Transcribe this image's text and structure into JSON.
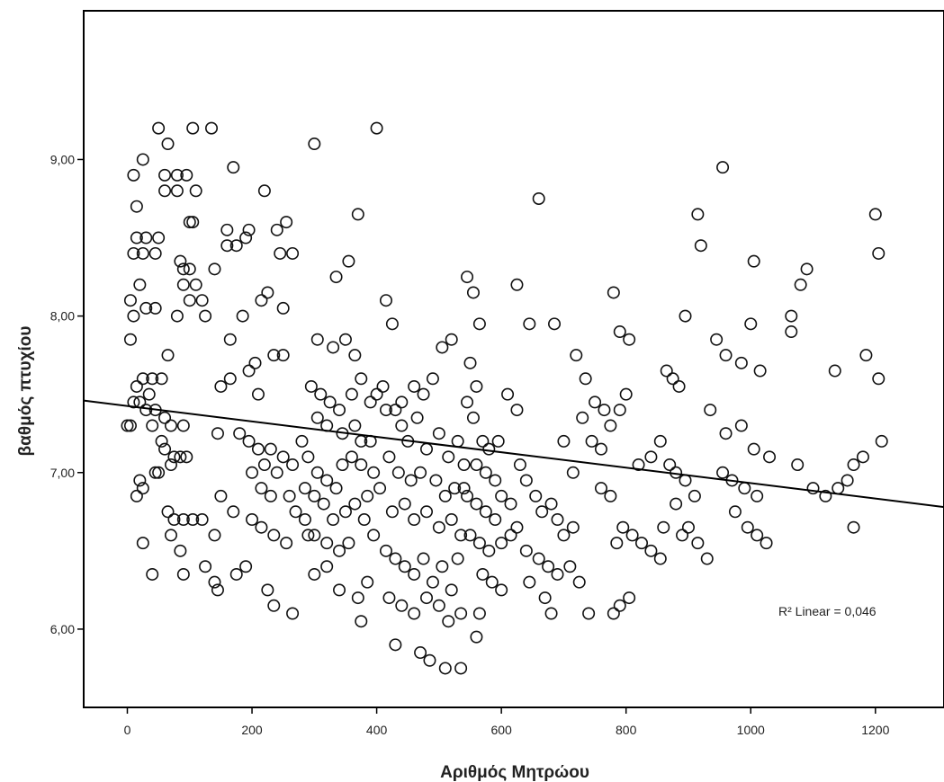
{
  "chart_data": {
    "type": "scatter",
    "title": "",
    "xlabel": "Αριθμός Μητρώου",
    "ylabel": "βαθμός πτυχίου",
    "xlim": [
      -70,
      1310
    ],
    "ylim": [
      5.5,
      9.95
    ],
    "x_ticks": [
      0,
      200,
      400,
      600,
      800,
      1000,
      1200
    ],
    "x_tick_labels": [
      "0",
      "200",
      "400",
      "600",
      "800",
      "1000",
      "1200"
    ],
    "y_ticks": [
      6,
      7,
      8,
      9
    ],
    "y_tick_labels": [
      "6,00",
      "7,00",
      "8,00",
      "9,00"
    ],
    "grid": false,
    "fit_line": {
      "type": "linear",
      "x": [
        -70,
        1310
      ],
      "y": [
        7.46,
        6.78
      ]
    },
    "annotation": "R² Linear = 0,046",
    "points": [
      [
        50,
        9.2
      ],
      [
        105,
        9.2
      ],
      [
        135,
        9.2
      ],
      [
        65,
        9.1
      ],
      [
        25,
        9.0
      ],
      [
        80,
        8.9
      ],
      [
        95,
        8.9
      ],
      [
        60,
        8.9
      ],
      [
        10,
        8.9
      ],
      [
        60,
        8.8
      ],
      [
        80,
        8.8
      ],
      [
        110,
        8.8
      ],
      [
        15,
        8.7
      ],
      [
        100,
        8.6
      ],
      [
        105,
        8.6
      ],
      [
        50,
        8.5
      ],
      [
        30,
        8.5
      ],
      [
        15,
        8.5
      ],
      [
        10,
        8.4
      ],
      [
        25,
        8.4
      ],
      [
        45,
        8.4
      ],
      [
        85,
        8.35
      ],
      [
        90,
        8.3
      ],
      [
        100,
        8.3
      ],
      [
        140,
        8.3
      ],
      [
        110,
        8.2
      ],
      [
        90,
        8.2
      ],
      [
        20,
        8.2
      ],
      [
        5,
        8.1
      ],
      [
        120,
        8.1
      ],
      [
        45,
        8.05
      ],
      [
        30,
        8.05
      ],
      [
        10,
        8.0
      ],
      [
        80,
        8.0
      ],
      [
        125,
        8.0
      ],
      [
        100,
        8.1
      ],
      [
        5,
        7.85
      ],
      [
        65,
        7.75
      ],
      [
        15,
        7.55
      ],
      [
        25,
        7.6
      ],
      [
        40,
        7.6
      ],
      [
        55,
        7.6
      ],
      [
        35,
        7.5
      ],
      [
        10,
        7.45
      ],
      [
        20,
        7.45
      ],
      [
        45,
        7.4
      ],
      [
        30,
        7.4
      ],
      [
        60,
        7.35
      ],
      [
        0,
        7.3
      ],
      [
        5,
        7.3
      ],
      [
        40,
        7.3
      ],
      [
        70,
        7.3
      ],
      [
        90,
        7.3
      ],
      [
        55,
        7.2
      ],
      [
        60,
        7.15
      ],
      [
        75,
        7.1
      ],
      [
        85,
        7.1
      ],
      [
        95,
        7.1
      ],
      [
        70,
        7.05
      ],
      [
        45,
        7.0
      ],
      [
        20,
        6.95
      ],
      [
        50,
        7.0
      ],
      [
        15,
        6.85
      ],
      [
        25,
        6.9
      ],
      [
        65,
        6.75
      ],
      [
        75,
        6.7
      ],
      [
        90,
        6.7
      ],
      [
        70,
        6.6
      ],
      [
        105,
        6.7
      ],
      [
        120,
        6.7
      ],
      [
        85,
        6.5
      ],
      [
        25,
        6.55
      ],
      [
        140,
        6.6
      ],
      [
        40,
        6.35
      ],
      [
        90,
        6.35
      ],
      [
        125,
        6.4
      ],
      [
        140,
        6.3
      ],
      [
        145,
        6.25
      ],
      [
        175,
        6.35
      ],
      [
        190,
        6.4
      ],
      [
        170,
        8.95
      ],
      [
        220,
        8.8
      ],
      [
        195,
        8.55
      ],
      [
        160,
        8.55
      ],
      [
        190,
        8.5
      ],
      [
        175,
        8.45
      ],
      [
        160,
        8.45
      ],
      [
        240,
        8.55
      ],
      [
        255,
        8.6
      ],
      [
        245,
        8.4
      ],
      [
        265,
        8.4
      ],
      [
        225,
        8.15
      ],
      [
        215,
        8.1
      ],
      [
        250,
        8.05
      ],
      [
        185,
        8.0
      ],
      [
        165,
        7.85
      ],
      [
        205,
        7.7
      ],
      [
        210,
        7.5
      ],
      [
        195,
        7.65
      ],
      [
        235,
        7.75
      ],
      [
        250,
        7.75
      ],
      [
        165,
        7.6
      ],
      [
        150,
        7.55
      ],
      [
        145,
        7.25
      ],
      [
        180,
        7.25
      ],
      [
        195,
        7.2
      ],
      [
        210,
        7.15
      ],
      [
        220,
        7.05
      ],
      [
        200,
        7.0
      ],
      [
        230,
        7.15
      ],
      [
        240,
        7.0
      ],
      [
        250,
        7.1
      ],
      [
        265,
        7.05
      ],
      [
        215,
        6.9
      ],
      [
        230,
        6.85
      ],
      [
        260,
        6.85
      ],
      [
        150,
        6.85
      ],
      [
        170,
        6.75
      ],
      [
        200,
        6.7
      ],
      [
        215,
        6.65
      ],
      [
        235,
        6.6
      ],
      [
        255,
        6.55
      ],
      [
        270,
        6.75
      ],
      [
        285,
        6.7
      ],
      [
        290,
        6.6
      ],
      [
        225,
        6.25
      ],
      [
        235,
        6.15
      ],
      [
        265,
        6.1
      ],
      [
        300,
        9.1
      ],
      [
        370,
        8.65
      ],
      [
        355,
        8.35
      ],
      [
        335,
        8.25
      ],
      [
        305,
        7.85
      ],
      [
        330,
        7.8
      ],
      [
        350,
        7.85
      ],
      [
        365,
        7.75
      ],
      [
        375,
        7.6
      ],
      [
        390,
        7.45
      ],
      [
        400,
        7.5
      ],
      [
        410,
        7.55
      ],
      [
        415,
        7.4
      ],
      [
        430,
        7.4
      ],
      [
        295,
        7.55
      ],
      [
        310,
        7.5
      ],
      [
        325,
        7.45
      ],
      [
        340,
        7.4
      ],
      [
        360,
        7.5
      ],
      [
        305,
        7.35
      ],
      [
        320,
        7.3
      ],
      [
        345,
        7.25
      ],
      [
        365,
        7.3
      ],
      [
        375,
        7.2
      ],
      [
        390,
        7.2
      ],
      [
        280,
        7.2
      ],
      [
        290,
        7.1
      ],
      [
        305,
        7.0
      ],
      [
        320,
        6.95
      ],
      [
        335,
        6.9
      ],
      [
        345,
        7.05
      ],
      [
        360,
        7.1
      ],
      [
        375,
        7.05
      ],
      [
        395,
        7.0
      ],
      [
        405,
        6.9
      ],
      [
        385,
        6.85
      ],
      [
        365,
        6.8
      ],
      [
        350,
        6.75
      ],
      [
        330,
        6.7
      ],
      [
        315,
        6.8
      ],
      [
        300,
        6.85
      ],
      [
        285,
        6.9
      ],
      [
        300,
        6.6
      ],
      [
        320,
        6.55
      ],
      [
        340,
        6.5
      ],
      [
        355,
        6.55
      ],
      [
        380,
        6.7
      ],
      [
        395,
        6.6
      ],
      [
        300,
        6.35
      ],
      [
        320,
        6.4
      ],
      [
        340,
        6.25
      ],
      [
        370,
        6.2
      ],
      [
        385,
        6.3
      ],
      [
        375,
        6.05
      ],
      [
        400,
        9.2
      ],
      [
        415,
        8.1
      ],
      [
        425,
        7.95
      ],
      [
        440,
        7.45
      ],
      [
        460,
        7.55
      ],
      [
        475,
        7.5
      ],
      [
        490,
        7.6
      ],
      [
        505,
        7.8
      ],
      [
        520,
        7.85
      ],
      [
        440,
        7.3
      ],
      [
        450,
        7.2
      ],
      [
        465,
        7.35
      ],
      [
        480,
        7.15
      ],
      [
        500,
        7.25
      ],
      [
        515,
        7.1
      ],
      [
        530,
        7.2
      ],
      [
        540,
        7.05
      ],
      [
        420,
        7.1
      ],
      [
        435,
        7.0
      ],
      [
        455,
        6.95
      ],
      [
        470,
        7.0
      ],
      [
        495,
        6.95
      ],
      [
        510,
        6.85
      ],
      [
        525,
        6.9
      ],
      [
        540,
        6.9
      ],
      [
        425,
        6.75
      ],
      [
        445,
        6.8
      ],
      [
        460,
        6.7
      ],
      [
        480,
        6.75
      ],
      [
        500,
        6.65
      ],
      [
        520,
        6.7
      ],
      [
        535,
        6.6
      ],
      [
        415,
        6.5
      ],
      [
        430,
        6.45
      ],
      [
        445,
        6.4
      ],
      [
        460,
        6.35
      ],
      [
        475,
        6.45
      ],
      [
        490,
        6.3
      ],
      [
        505,
        6.4
      ],
      [
        520,
        6.25
      ],
      [
        530,
        6.45
      ],
      [
        420,
        6.2
      ],
      [
        440,
        6.15
      ],
      [
        460,
        6.1
      ],
      [
        480,
        6.2
      ],
      [
        500,
        6.15
      ],
      [
        515,
        6.05
      ],
      [
        535,
        6.1
      ],
      [
        430,
        5.9
      ],
      [
        470,
        5.85
      ],
      [
        485,
        5.8
      ],
      [
        510,
        5.75
      ],
      [
        535,
        5.75
      ],
      [
        545,
        8.25
      ],
      [
        555,
        8.15
      ],
      [
        565,
        7.95
      ],
      [
        550,
        7.7
      ],
      [
        560,
        7.55
      ],
      [
        545,
        7.45
      ],
      [
        555,
        7.35
      ],
      [
        570,
        7.2
      ],
      [
        580,
        7.15
      ],
      [
        595,
        7.2
      ],
      [
        560,
        7.05
      ],
      [
        575,
        7.0
      ],
      [
        590,
        6.95
      ],
      [
        545,
        6.85
      ],
      [
        560,
        6.8
      ],
      [
        575,
        6.75
      ],
      [
        590,
        6.7
      ],
      [
        600,
        6.85
      ],
      [
        615,
        6.8
      ],
      [
        550,
        6.6
      ],
      [
        565,
        6.55
      ],
      [
        580,
        6.5
      ],
      [
        600,
        6.55
      ],
      [
        615,
        6.6
      ],
      [
        625,
        6.65
      ],
      [
        570,
        6.35
      ],
      [
        585,
        6.3
      ],
      [
        600,
        6.25
      ],
      [
        565,
        6.1
      ],
      [
        560,
        5.95
      ],
      [
        610,
        7.5
      ],
      [
        625,
        7.4
      ],
      [
        625,
        8.2
      ],
      [
        645,
        7.95
      ],
      [
        660,
        8.75
      ],
      [
        685,
        7.95
      ],
      [
        630,
        7.05
      ],
      [
        640,
        6.95
      ],
      [
        655,
        6.85
      ],
      [
        665,
        6.75
      ],
      [
        680,
        6.8
      ],
      [
        690,
        6.7
      ],
      [
        700,
        6.6
      ],
      [
        715,
        6.65
      ],
      [
        640,
        6.5
      ],
      [
        660,
        6.45
      ],
      [
        675,
        6.4
      ],
      [
        690,
        6.35
      ],
      [
        710,
        6.4
      ],
      [
        725,
        6.3
      ],
      [
        645,
        6.3
      ],
      [
        670,
        6.2
      ],
      [
        680,
        6.1
      ],
      [
        700,
        7.2
      ],
      [
        715,
        7.0
      ],
      [
        720,
        7.75
      ],
      [
        735,
        7.6
      ],
      [
        750,
        7.45
      ],
      [
        765,
        7.4
      ],
      [
        730,
        7.35
      ],
      [
        745,
        7.2
      ],
      [
        760,
        7.15
      ],
      [
        775,
        7.3
      ],
      [
        790,
        7.4
      ],
      [
        800,
        7.5
      ],
      [
        780,
        8.15
      ],
      [
        805,
        7.85
      ],
      [
        790,
        7.9
      ],
      [
        760,
        6.9
      ],
      [
        775,
        6.85
      ],
      [
        740,
        6.1
      ],
      [
        780,
        6.1
      ],
      [
        790,
        6.15
      ],
      [
        805,
        6.2
      ],
      [
        785,
        6.55
      ],
      [
        795,
        6.65
      ],
      [
        810,
        6.6
      ],
      [
        825,
        6.55
      ],
      [
        840,
        6.5
      ],
      [
        855,
        6.45
      ],
      [
        860,
        6.65
      ],
      [
        820,
        7.05
      ],
      [
        840,
        7.1
      ],
      [
        855,
        7.2
      ],
      [
        870,
        7.05
      ],
      [
        875,
        7.6
      ],
      [
        885,
        7.55
      ],
      [
        895,
        8.0
      ],
      [
        865,
        7.65
      ],
      [
        880,
        7.0
      ],
      [
        895,
        6.95
      ],
      [
        910,
        6.85
      ],
      [
        880,
        6.8
      ],
      [
        890,
        6.6
      ],
      [
        900,
        6.65
      ],
      [
        915,
        6.55
      ],
      [
        930,
        6.45
      ],
      [
        955,
        8.95
      ],
      [
        915,
        8.65
      ],
      [
        920,
        8.45
      ],
      [
        945,
        7.85
      ],
      [
        960,
        7.75
      ],
      [
        985,
        7.7
      ],
      [
        1000,
        7.95
      ],
      [
        1005,
        8.35
      ],
      [
        1015,
        7.65
      ],
      [
        935,
        7.4
      ],
      [
        960,
        7.25
      ],
      [
        985,
        7.3
      ],
      [
        1005,
        7.15
      ],
      [
        955,
        7.0
      ],
      [
        970,
        6.95
      ],
      [
        990,
        6.9
      ],
      [
        1010,
        6.85
      ],
      [
        975,
        6.75
      ],
      [
        995,
        6.65
      ],
      [
        1010,
        6.6
      ],
      [
        1025,
        6.55
      ],
      [
        1065,
        8.0
      ],
      [
        1065,
        7.9
      ],
      [
        1090,
        8.3
      ],
      [
        1080,
        8.2
      ],
      [
        1030,
        7.1
      ],
      [
        1075,
        7.05
      ],
      [
        1100,
        6.9
      ],
      [
        1120,
        6.85
      ],
      [
        1140,
        6.9
      ],
      [
        1155,
        6.95
      ],
      [
        1165,
        7.05
      ],
      [
        1135,
        7.65
      ],
      [
        1185,
        7.75
      ],
      [
        1200,
        8.65
      ],
      [
        1205,
        8.4
      ],
      [
        1205,
        7.6
      ],
      [
        1210,
        7.2
      ],
      [
        1165,
        6.65
      ],
      [
        1180,
        7.1
      ]
    ]
  }
}
